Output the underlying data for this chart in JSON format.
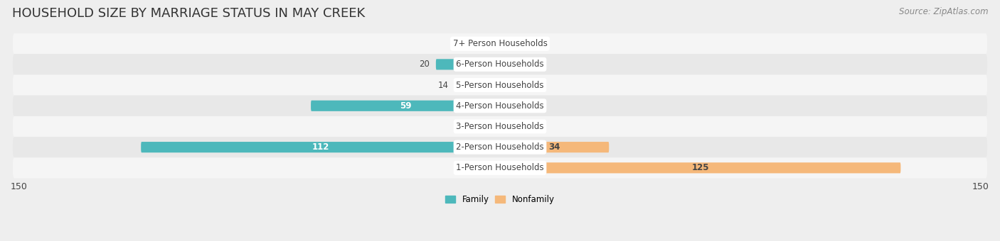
{
  "title": "HOUSEHOLD SIZE BY MARRIAGE STATUS IN MAY CREEK",
  "source": "Source: ZipAtlas.com",
  "categories": [
    "7+ Person Households",
    "6-Person Households",
    "5-Person Households",
    "4-Person Households",
    "3-Person Households",
    "2-Person Households",
    "1-Person Households"
  ],
  "family_values": [
    0,
    20,
    14,
    59,
    0,
    112,
    0
  ],
  "nonfamily_values": [
    0,
    0,
    0,
    0,
    0,
    34,
    125
  ],
  "family_color": "#4db8bb",
  "nonfamily_color": "#f5b87a",
  "xlim": 150,
  "bar_height": 0.52,
  "bg_color": "#eeeeee",
  "row_colors": [
    "#f5f5f5",
    "#e8e8e8"
  ],
  "label_dark": "#444444",
  "label_white": "#ffffff",
  "title_fontsize": 13,
  "source_fontsize": 8.5,
  "value_fontsize": 8.5,
  "cat_fontsize": 8.5,
  "axis_fontsize": 9,
  "white_threshold": 25
}
